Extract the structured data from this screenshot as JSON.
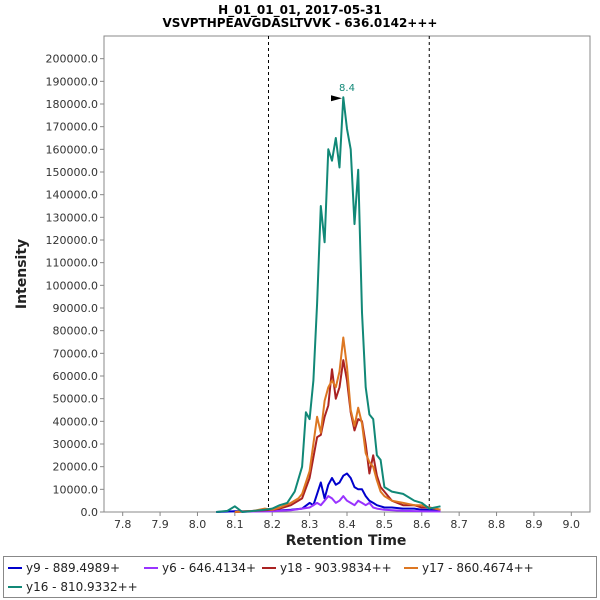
{
  "chart_data": {
    "type": "line",
    "title": "H_01_01_01, 2017-05-31",
    "subtitle": "VSVPTHPEAVGDASLTVVK - 636.0142+++",
    "xlabel": "Retention Time",
    "ylabel": "Intensity",
    "xlim": [
      7.75,
      9.05
    ],
    "ylim": [
      0,
      210000
    ],
    "x_ticks": [
      "7.8",
      "7.9",
      "8.0",
      "8.1",
      "8.2",
      "8.3",
      "8.4",
      "8.5",
      "8.6",
      "8.7",
      "8.8",
      "8.9",
      "9.0"
    ],
    "y_ticks": [
      "0.0",
      "10000.0",
      "20000.0",
      "30000.0",
      "40000.0",
      "50000.0",
      "60000.0",
      "70000.0",
      "80000.0",
      "90000.0",
      "100000.0",
      "110000.0",
      "120000.0",
      "130000.0",
      "140000.0",
      "150000.0",
      "160000.0",
      "170000.0",
      "180000.0",
      "190000.0",
      "200000.0"
    ],
    "grid": false,
    "vertical_markers": [
      8.19,
      8.62
    ],
    "peak_annotation": {
      "label": "8.4",
      "x": 8.4,
      "y": 183000
    },
    "legend_placement": "bottom",
    "series": [
      {
        "name": "y9 - 889.4989+",
        "color": "#0000cc",
        "points": [
          [
            8.05,
            0
          ],
          [
            8.1,
            300
          ],
          [
            8.15,
            300
          ],
          [
            8.2,
            500
          ],
          [
            8.25,
            1000
          ],
          [
            8.28,
            1500
          ],
          [
            8.3,
            4000
          ],
          [
            8.31,
            3000
          ],
          [
            8.32,
            8000
          ],
          [
            8.33,
            13000
          ],
          [
            8.34,
            6000
          ],
          [
            8.35,
            12000
          ],
          [
            8.36,
            15000
          ],
          [
            8.37,
            12000
          ],
          [
            8.38,
            13000
          ],
          [
            8.39,
            16000
          ],
          [
            8.4,
            17000
          ],
          [
            8.41,
            15000
          ],
          [
            8.42,
            11000
          ],
          [
            8.43,
            10000
          ],
          [
            8.44,
            10000
          ],
          [
            8.45,
            7000
          ],
          [
            8.46,
            5000
          ],
          [
            8.47,
            4000
          ],
          [
            8.48,
            3000
          ],
          [
            8.49,
            2500
          ],
          [
            8.5,
            2000
          ],
          [
            8.52,
            2000
          ],
          [
            8.55,
            1500
          ],
          [
            8.58,
            1500
          ],
          [
            8.6,
            1000
          ],
          [
            8.62,
            1000
          ],
          [
            8.65,
            500
          ]
        ]
      },
      {
        "name": "y6 - 646.4134+",
        "color": "#9933ff",
        "points": [
          [
            8.1,
            0
          ],
          [
            8.15,
            200
          ],
          [
            8.2,
            300
          ],
          [
            8.25,
            800
          ],
          [
            8.28,
            1500
          ],
          [
            8.3,
            2000
          ],
          [
            8.32,
            4000
          ],
          [
            8.33,
            3000
          ],
          [
            8.34,
            5000
          ],
          [
            8.35,
            7000
          ],
          [
            8.36,
            6000
          ],
          [
            8.37,
            4000
          ],
          [
            8.38,
            5000
          ],
          [
            8.39,
            7000
          ],
          [
            8.4,
            5000
          ],
          [
            8.41,
            4000
          ],
          [
            8.42,
            3000
          ],
          [
            8.43,
            5000
          ],
          [
            8.44,
            4000
          ],
          [
            8.45,
            3000
          ],
          [
            8.46,
            4000
          ],
          [
            8.47,
            2000
          ],
          [
            8.48,
            1500
          ],
          [
            8.5,
            1000
          ],
          [
            8.55,
            500
          ],
          [
            8.6,
            300
          ],
          [
            8.65,
            200
          ]
        ]
      },
      {
        "name": "y18 - 903.9834++",
        "color": "#aa2222",
        "points": [
          [
            8.1,
            0
          ],
          [
            8.15,
            500
          ],
          [
            8.2,
            1000
          ],
          [
            8.22,
            1500
          ],
          [
            8.25,
            3000
          ],
          [
            8.27,
            5000
          ],
          [
            8.28,
            6000
          ],
          [
            8.3,
            15000
          ],
          [
            8.32,
            33000
          ],
          [
            8.33,
            34000
          ],
          [
            8.34,
            42000
          ],
          [
            8.35,
            47000
          ],
          [
            8.36,
            63000
          ],
          [
            8.37,
            50000
          ],
          [
            8.38,
            55000
          ],
          [
            8.39,
            67000
          ],
          [
            8.4,
            58000
          ],
          [
            8.41,
            44000
          ],
          [
            8.42,
            36000
          ],
          [
            8.43,
            41000
          ],
          [
            8.44,
            40000
          ],
          [
            8.45,
            30000
          ],
          [
            8.46,
            17000
          ],
          [
            8.47,
            25000
          ],
          [
            8.48,
            16000
          ],
          [
            8.49,
            11000
          ],
          [
            8.5,
            9000
          ],
          [
            8.52,
            5000
          ],
          [
            8.55,
            3000
          ],
          [
            8.58,
            3000
          ],
          [
            8.6,
            2000
          ],
          [
            8.62,
            2000
          ],
          [
            8.65,
            1000
          ]
        ]
      },
      {
        "name": "y17 - 860.4674++",
        "color": "#dd7722",
        "points": [
          [
            8.1,
            0
          ],
          [
            8.15,
            500
          ],
          [
            8.18,
            1500
          ],
          [
            8.2,
            1000
          ],
          [
            8.22,
            2000
          ],
          [
            8.25,
            4000
          ],
          [
            8.27,
            6000
          ],
          [
            8.28,
            8000
          ],
          [
            8.3,
            18000
          ],
          [
            8.32,
            42000
          ],
          [
            8.33,
            35000
          ],
          [
            8.34,
            49000
          ],
          [
            8.35,
            55000
          ],
          [
            8.36,
            58000
          ],
          [
            8.37,
            55000
          ],
          [
            8.38,
            62000
          ],
          [
            8.39,
            77000
          ],
          [
            8.4,
            64000
          ],
          [
            8.41,
            45000
          ],
          [
            8.42,
            38000
          ],
          [
            8.43,
            46000
          ],
          [
            8.44,
            39000
          ],
          [
            8.45,
            26000
          ],
          [
            8.46,
            22000
          ],
          [
            8.47,
            20000
          ],
          [
            8.48,
            14000
          ],
          [
            8.49,
            9000
          ],
          [
            8.5,
            7000
          ],
          [
            8.52,
            5000
          ],
          [
            8.55,
            4000
          ],
          [
            8.58,
            3000
          ],
          [
            8.6,
            3000
          ],
          [
            8.62,
            2000
          ],
          [
            8.65,
            1000
          ]
        ]
      },
      {
        "name": "y16 - 810.9332++",
        "color": "#118877",
        "points": [
          [
            8.05,
            0
          ],
          [
            8.08,
            500
          ],
          [
            8.1,
            2500
          ],
          [
            8.12,
            0
          ],
          [
            8.15,
            500
          ],
          [
            8.18,
            1000
          ],
          [
            8.2,
            1500
          ],
          [
            8.22,
            3000
          ],
          [
            8.24,
            4000
          ],
          [
            8.26,
            9000
          ],
          [
            8.28,
            20000
          ],
          [
            8.29,
            44000
          ],
          [
            8.3,
            41000
          ],
          [
            8.31,
            58000
          ],
          [
            8.32,
            92000
          ],
          [
            8.33,
            135000
          ],
          [
            8.34,
            119000
          ],
          [
            8.35,
            160000
          ],
          [
            8.36,
            155000
          ],
          [
            8.37,
            165000
          ],
          [
            8.38,
            152000
          ],
          [
            8.39,
            183000
          ],
          [
            8.4,
            169000
          ],
          [
            8.41,
            160000
          ],
          [
            8.42,
            127000
          ],
          [
            8.43,
            151000
          ],
          [
            8.44,
            88000
          ],
          [
            8.45,
            55000
          ],
          [
            8.46,
            43000
          ],
          [
            8.47,
            41000
          ],
          [
            8.48,
            25000
          ],
          [
            8.49,
            23000
          ],
          [
            8.5,
            11000
          ],
          [
            8.52,
            9000
          ],
          [
            8.55,
            8000
          ],
          [
            8.58,
            5000
          ],
          [
            8.6,
            4000
          ],
          [
            8.62,
            1500
          ],
          [
            8.65,
            2500
          ]
        ]
      }
    ]
  }
}
